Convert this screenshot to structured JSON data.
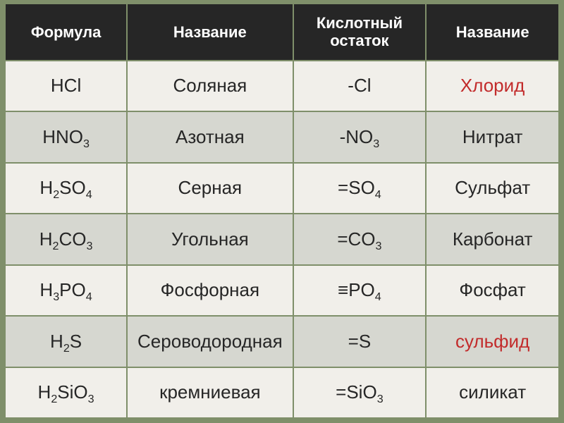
{
  "table": {
    "background_color": "#7f8f6a",
    "header_bg": "#262626",
    "header_color": "#ffffff",
    "row_light_bg": "#f1efea",
    "row_dark_bg": "#d6d7d0",
    "cell_color": "#262626",
    "highlight_color": "#c22b2b",
    "header_fontsize": 22,
    "cell_fontsize": 26,
    "col_widths_percent": [
      22,
      30,
      24,
      24
    ],
    "columns": [
      "Формула",
      "Название",
      "Кислотный остаток",
      "Название"
    ],
    "rows": [
      {
        "formula_html": "HCl",
        "name": "Соляная",
        "residue_html": "-Cl",
        "residue_name": "Хлорид",
        "highlight": true,
        "stripe": "light"
      },
      {
        "formula_html": "HNO<sub>3</sub>",
        "name": "Азотная",
        "residue_html": "-NO<sub>3</sub>",
        "residue_name": "Нитрат",
        "highlight": false,
        "stripe": "dark"
      },
      {
        "formula_html": "H<sub>2</sub>SO<sub>4</sub>",
        "name": "Серная",
        "residue_html": "=SO<sub>4</sub>",
        "residue_name": "Сульфат",
        "highlight": false,
        "stripe": "light"
      },
      {
        "formula_html": "H<sub>2</sub>CO<sub>3</sub>",
        "name": "Угольная",
        "residue_html": "=CO<sub>3</sub>",
        "residue_name": "Карбонат",
        "highlight": false,
        "stripe": "dark"
      },
      {
        "formula_html": "H<sub>3</sub>PO<sub>4</sub>",
        "name": "Фосфорная",
        "residue_html": "≡PO<sub>4</sub>",
        "residue_name": "Фосфат",
        "highlight": false,
        "stripe": "light"
      },
      {
        "formula_html": "H<sub>2</sub>S",
        "name": "Сероводородная",
        "residue_html": "=S",
        "residue_name": "сульфид",
        "highlight": true,
        "stripe": "dark"
      },
      {
        "formula_html": "H<sub>2</sub>SiO<sub>3</sub>",
        "name": "кремниевая",
        "residue_html": "=SiO<sub>3</sub>",
        "residue_name": "силикат",
        "highlight": false,
        "stripe": "light"
      }
    ]
  }
}
